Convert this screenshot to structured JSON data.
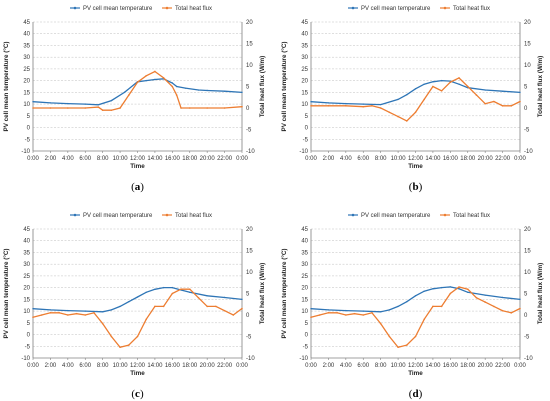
{
  "legend": {
    "temperature": "PV cell mean temperature",
    "heat_flux": "Total heat flux"
  },
  "colors": {
    "temperature": "#2e75b6",
    "heat_flux": "#ed7d31",
    "grid": "#bfbfbf",
    "axis": "#808080"
  },
  "chart_data": [
    {
      "type": "line",
      "panel_label": "a",
      "xlabel": "Time",
      "ylabel": "PV cell mean temperature (°C)",
      "ylabel_right": "Total heat flux (W/m)",
      "x_ticks": [
        "0:00",
        "2:00",
        "4:00",
        "6:00",
        "8:00",
        "10:00",
        "12:00",
        "14:00",
        "16:00",
        "18:00",
        "20:00",
        "22:00",
        "0:00"
      ],
      "ylim": [
        -10,
        45
      ],
      "y_ticks": [
        -10,
        -5,
        0,
        5,
        10,
        15,
        20,
        25,
        30,
        35,
        40,
        45
      ],
      "ylim_right": [
        -10,
        20
      ],
      "y_ticks_right": [
        -10,
        -5,
        0,
        5,
        10,
        15,
        20
      ],
      "grid": true,
      "legend_position": "top-center",
      "x_hours": [
        0,
        2,
        4,
        6,
        7.5,
        9,
        10.5,
        12,
        13,
        14,
        15,
        16,
        16.5,
        17.5,
        19,
        20,
        22,
        24
      ],
      "temperature": [
        11,
        10.5,
        10.2,
        10,
        9.7,
        11.5,
        15,
        19.5,
        20,
        20.5,
        20.8,
        19,
        17.5,
        16.8,
        16,
        15.8,
        15.5,
        15
      ],
      "heat_flux_x": [
        0,
        2,
        4,
        6,
        7.5,
        8,
        9,
        10,
        11,
        12,
        13,
        14,
        15,
        16,
        16.5,
        17,
        18,
        20,
        22,
        24
      ],
      "heat_flux": [
        0,
        0,
        0,
        0,
        0.2,
        -0.5,
        -0.5,
        0,
        3,
        6,
        7.5,
        8.5,
        7,
        5,
        3,
        0,
        0,
        0,
        0,
        0.3
      ]
    },
    {
      "type": "line",
      "panel_label": "b",
      "xlabel": "Time",
      "ylabel": "PV cell mean temperature (°C)",
      "ylabel_right": "Total heat flux (W/m)",
      "x_ticks": [
        "0:00",
        "2:00",
        "4:00",
        "6:00",
        "8:00",
        "10:00",
        "12:00",
        "14:00",
        "16:00",
        "18:00",
        "20:00",
        "22:00",
        "0:00"
      ],
      "ylim": [
        -10,
        45
      ],
      "y_ticks": [
        -10,
        -5,
        0,
        5,
        10,
        15,
        20,
        25,
        30,
        35,
        40,
        45
      ],
      "ylim_right": [
        -10,
        20
      ],
      "y_ticks_right": [
        -10,
        -5,
        0,
        5,
        10,
        15,
        20
      ],
      "grid": true,
      "legend_position": "top-center",
      "x_hours": [
        0,
        2,
        4,
        6,
        8,
        10,
        11,
        12,
        13,
        14,
        15,
        16,
        17,
        18,
        20,
        22,
        24
      ],
      "temperature": [
        11,
        10.5,
        10.2,
        10,
        9.8,
        12,
        14,
        16.5,
        18.5,
        19.5,
        20,
        19.8,
        18.5,
        17,
        16,
        15.5,
        15
      ],
      "heat_flux_x": [
        0,
        2,
        4,
        6,
        7,
        8,
        9,
        10,
        11,
        12,
        13,
        14,
        15,
        16,
        17,
        18,
        19,
        20,
        21,
        22,
        23,
        24
      ],
      "heat_flux": [
        0.5,
        0.5,
        0.5,
        0.3,
        0.5,
        0,
        -1,
        -2,
        -3,
        -1,
        2,
        5,
        4,
        6,
        7,
        5,
        3,
        1,
        1.5,
        0.5,
        0.5,
        1.5
      ]
    },
    {
      "type": "line",
      "panel_label": "c",
      "xlabel": "Time",
      "ylabel": "PV cell mean temperature (°C)",
      "ylabel_right": "Total heat flux (W/m)",
      "x_ticks": [
        "0:00",
        "2:00",
        "4:00",
        "6:00",
        "8:00",
        "10:00",
        "12:00",
        "14:00",
        "16:00",
        "18:00",
        "20:00",
        "22:00",
        "0:00"
      ],
      "ylim": [
        -10,
        45
      ],
      "y_ticks": [
        -10,
        -5,
        0,
        5,
        10,
        15,
        20,
        25,
        30,
        35,
        40,
        45
      ],
      "ylim_right": [
        -10,
        20
      ],
      "y_ticks_right": [
        -10,
        -5,
        0,
        5,
        10,
        15,
        20
      ],
      "grid": true,
      "legend_position": "top-center",
      "x_hours": [
        0,
        2,
        4,
        6,
        8,
        9,
        10,
        11,
        12,
        13,
        14,
        15,
        16,
        17,
        18,
        20,
        22,
        24
      ],
      "temperature": [
        11,
        10.5,
        10.2,
        10,
        9.7,
        10.5,
        12,
        14,
        16,
        18,
        19.3,
        20,
        20,
        19,
        18,
        16.5,
        15.8,
        15
      ],
      "heat_flux_x": [
        0,
        1,
        2,
        3,
        4,
        5,
        6,
        7,
        8,
        9,
        10,
        11,
        12,
        13,
        14,
        15,
        16,
        17,
        18,
        19,
        20,
        21,
        22,
        23,
        24
      ],
      "heat_flux": [
        -0.5,
        0,
        0.5,
        0.5,
        0,
        0.3,
        0,
        0.5,
        -2,
        -5,
        -7.5,
        -7,
        -5,
        -1,
        2,
        2,
        5,
        6,
        6,
        4,
        2,
        2,
        1,
        0,
        1.5
      ]
    },
    {
      "type": "line",
      "panel_label": "d",
      "xlabel": "Time",
      "ylabel": "PV cell mean temperature (°C)",
      "ylabel_right": "Total heat flux (W/m)",
      "x_ticks": [
        "0:00",
        "2:00",
        "4:00",
        "6:00",
        "8:00",
        "10:00",
        "12:00",
        "14:00",
        "16:00",
        "18:00",
        "20:00",
        "22:00",
        "0:00"
      ],
      "ylim": [
        -10,
        45
      ],
      "y_ticks": [
        -10,
        -5,
        0,
        5,
        10,
        15,
        20,
        25,
        30,
        35,
        40,
        45
      ],
      "ylim_right": [
        -10,
        20
      ],
      "y_ticks_right": [
        -10,
        -5,
        0,
        5,
        10,
        15,
        20
      ],
      "grid": true,
      "legend_position": "top-center",
      "x_hours": [
        0,
        2,
        4,
        6,
        8,
        9,
        10,
        11,
        12,
        13,
        14,
        15,
        16,
        17,
        18,
        20,
        22,
        24
      ],
      "temperature": [
        11,
        10.5,
        10.2,
        10,
        9.7,
        10.5,
        12,
        14,
        16.5,
        18.5,
        19.5,
        20,
        20.3,
        19.5,
        18,
        16.8,
        15.8,
        15
      ],
      "heat_flux_x": [
        0,
        1,
        2,
        3,
        4,
        5,
        6,
        7,
        8,
        9,
        10,
        11,
        12,
        13,
        14,
        15,
        16,
        17,
        18,
        19,
        20,
        21,
        22,
        23,
        24
      ],
      "heat_flux": [
        -0.5,
        0,
        0.5,
        0.5,
        0,
        0.3,
        0,
        0.5,
        -2,
        -5,
        -7.5,
        -7,
        -5,
        -1,
        2,
        2,
        5,
        6.5,
        6,
        4,
        3,
        2,
        1,
        0.5,
        1.5
      ]
    }
  ]
}
